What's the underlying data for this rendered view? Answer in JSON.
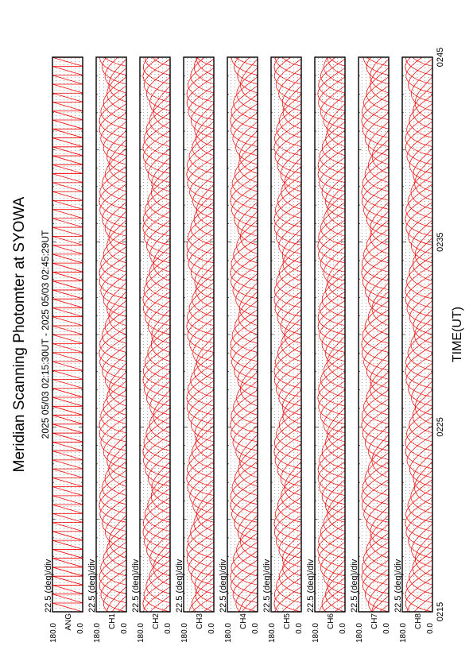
{
  "chart_data": {
    "type": "line",
    "title": "Meridian Scanning Photomter at SYOWA",
    "subtitle": "2025 05/03 02:15:30UT - 2025 05/03 02:45:29UT",
    "xlabel": "TIME(UT)",
    "x_ticks": [
      "0215",
      "0225",
      "0235",
      "0245"
    ],
    "x_range": [
      "0215",
      "0245"
    ],
    "panel_scale": "22.5 (deg)/div",
    "y_ticks": [
      "180.0",
      "0.0"
    ],
    "ylim": [
      0,
      180
    ],
    "panels": [
      {
        "channel": "ANG",
        "shape": "sawtooth"
      },
      {
        "channel": "CH1",
        "shape": "arch"
      },
      {
        "channel": "CH2",
        "shape": "arch"
      },
      {
        "channel": "CH3",
        "shape": "arch"
      },
      {
        "channel": "CH4",
        "shape": "arch"
      },
      {
        "channel": "CH5",
        "shape": "arch"
      },
      {
        "channel": "CH6",
        "shape": "arch"
      },
      {
        "channel": "CH7",
        "shape": "arch"
      },
      {
        "channel": "CH8",
        "shape": "arch"
      }
    ],
    "line_color": "#ff0000"
  }
}
